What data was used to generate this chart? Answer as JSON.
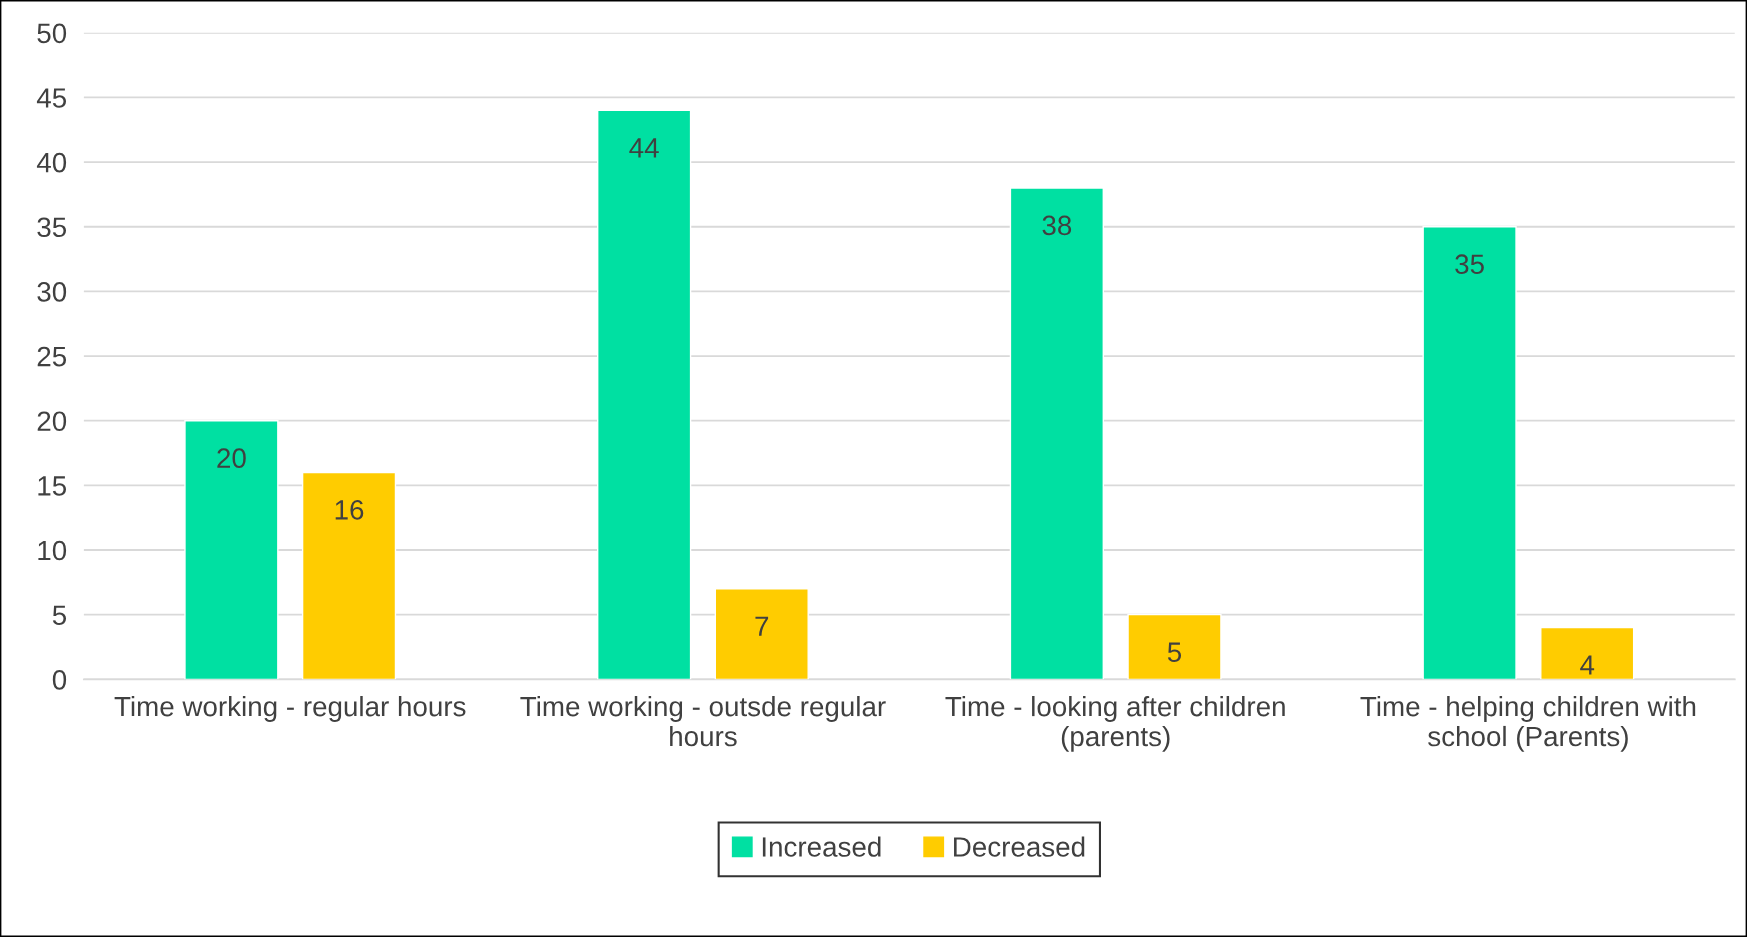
{
  "chart_data": {
    "type": "bar",
    "categories": [
      "Time working - regular hours",
      "Time working - outsde regular hours",
      "Time - looking after children (parents)",
      "Time - helping children with school (Parents)"
    ],
    "series": [
      {
        "name": "Increased",
        "color": "#00e0a2",
        "values": [
          20,
          44,
          38,
          35
        ]
      },
      {
        "name": "Decreased",
        "color": "#ffcc00",
        "values": [
          16,
          7,
          5,
          4
        ]
      }
    ],
    "ylim": [
      0,
      50
    ],
    "yticks": [
      0,
      5,
      10,
      15,
      20,
      25,
      30,
      35,
      40,
      45,
      50
    ],
    "grid": "y",
    "legend": "bottom",
    "data_labels": true
  }
}
